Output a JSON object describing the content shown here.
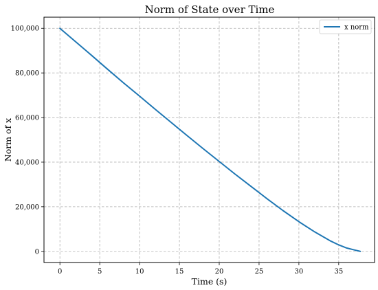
{
  "chart_data": {
    "type": "line",
    "title": "Norm of State over Time",
    "xlabel": "Time (s)",
    "ylabel": "Norm of x",
    "xlim": [
      -2,
      39.5
    ],
    "ylim": [
      -5000,
      105000
    ],
    "xticks": [
      0,
      5,
      10,
      15,
      20,
      25,
      30,
      35
    ],
    "xtick_labels": [
      "0",
      "5",
      "10",
      "15",
      "20",
      "25",
      "30",
      "35"
    ],
    "yticks": [
      0,
      20000,
      40000,
      60000,
      80000,
      100000
    ],
    "ytick_labels": [
      "0",
      "20,000",
      "40,000",
      "60,000",
      "80,000",
      "100,000"
    ],
    "grid": true,
    "legend_position": "top-right",
    "series": [
      {
        "name": "x norm",
        "color": "#1f77b4",
        "x": [
          0,
          2,
          4,
          6,
          8,
          10,
          12,
          14,
          16,
          18,
          20,
          22,
          24,
          26,
          28,
          30,
          32,
          34,
          35,
          36,
          37,
          37.7
        ],
        "values": [
          100000,
          93900,
          87800,
          81600,
          75500,
          69600,
          63600,
          57700,
          51800,
          46000,
          40300,
          34600,
          29100,
          23600,
          18300,
          13300,
          8700,
          4600,
          2900,
          1500,
          600,
          0
        ]
      }
    ]
  }
}
